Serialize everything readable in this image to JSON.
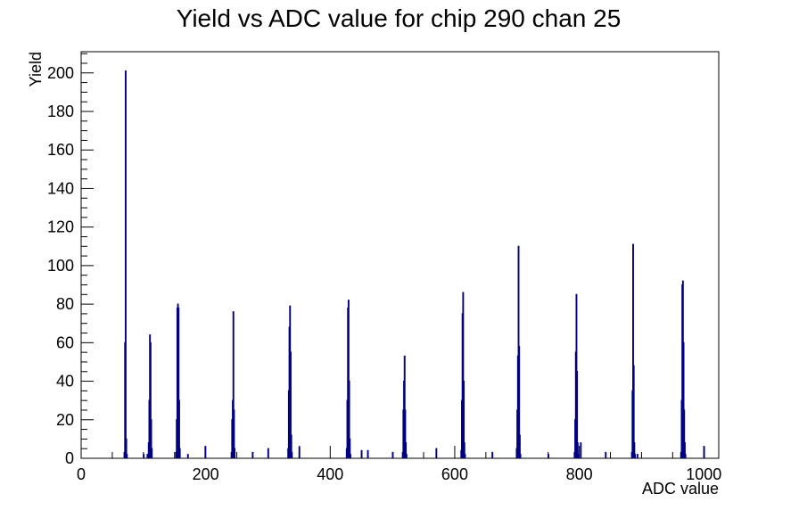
{
  "chart_data": {
    "type": "histogram",
    "title": "Yield vs ADC value for chip 290 chan 25",
    "xlabel": "ADC value",
    "ylabel": "Yield",
    "xlim": [
      0,
      1024
    ],
    "ylim": [
      0,
      211
    ],
    "x_ticks": [
      0,
      200,
      400,
      600,
      800,
      1000
    ],
    "y_ticks": [
      0,
      20,
      40,
      60,
      80,
      100,
      120,
      140,
      160,
      180,
      200
    ],
    "line_color": "#000080",
    "series": [
      {
        "bins": [
          [
            69,
            3
          ],
          [
            70,
            60
          ],
          [
            71,
            201
          ],
          [
            72,
            10
          ],
          [
            73,
            2
          ],
          [
            100,
            2
          ],
          [
            106,
            2
          ],
          [
            108,
            8
          ],
          [
            109,
            30
          ],
          [
            110,
            64
          ],
          [
            111,
            60
          ],
          [
            112,
            20
          ],
          [
            113,
            5
          ],
          [
            152,
            3
          ],
          [
            153,
            20
          ],
          [
            154,
            78
          ],
          [
            155,
            80
          ],
          [
            156,
            78
          ],
          [
            157,
            30
          ],
          [
            158,
            5
          ],
          [
            241,
            3
          ],
          [
            242,
            20
          ],
          [
            243,
            30
          ],
          [
            244,
            76
          ],
          [
            245,
            25
          ],
          [
            246,
            5
          ],
          [
            332,
            5
          ],
          [
            333,
            35
          ],
          [
            334,
            68
          ],
          [
            335,
            79
          ],
          [
            336,
            55
          ],
          [
            337,
            12
          ],
          [
            338,
            3
          ],
          [
            426,
            5
          ],
          [
            427,
            30
          ],
          [
            428,
            78
          ],
          [
            429,
            82
          ],
          [
            430,
            40
          ],
          [
            431,
            10
          ],
          [
            432,
            2
          ],
          [
            516,
            3
          ],
          [
            517,
            25
          ],
          [
            518,
            40
          ],
          [
            519,
            53
          ],
          [
            520,
            25
          ],
          [
            521,
            8
          ],
          [
            522,
            2
          ],
          [
            610,
            4
          ],
          [
            611,
            30
          ],
          [
            612,
            75
          ],
          [
            613,
            86
          ],
          [
            614,
            40
          ],
          [
            615,
            8
          ],
          [
            616,
            2
          ],
          [
            699,
            5
          ],
          [
            700,
            25
          ],
          [
            701,
            53
          ],
          [
            702,
            110
          ],
          [
            703,
            58
          ],
          [
            704,
            12
          ],
          [
            705,
            2
          ],
          [
            792,
            3
          ],
          [
            793,
            20
          ],
          [
            794,
            55
          ],
          [
            795,
            85
          ],
          [
            796,
            45
          ],
          [
            797,
            8
          ],
          [
            798,
            2
          ],
          [
            884,
            3
          ],
          [
            885,
            35
          ],
          [
            886,
            111
          ],
          [
            887,
            48
          ],
          [
            888,
            8
          ],
          [
            889,
            2
          ],
          [
            963,
            3
          ],
          [
            964,
            30
          ],
          [
            965,
            90
          ],
          [
            966,
            92
          ],
          [
            967,
            60
          ],
          [
            968,
            25
          ],
          [
            969,
            8
          ],
          [
            970,
            2
          ],
          [
            171,
            2
          ],
          [
            199,
            6
          ],
          [
            275,
            3
          ],
          [
            300,
            5
          ],
          [
            350,
            6
          ],
          [
            450,
            4
          ],
          [
            460,
            4
          ],
          [
            500,
            3
          ],
          [
            570,
            5
          ],
          [
            660,
            3
          ],
          [
            750,
            2
          ],
          [
            802,
            8
          ],
          [
            842,
            3
          ],
          [
            893,
            2
          ],
          [
            1000,
            6
          ]
        ]
      }
    ]
  }
}
